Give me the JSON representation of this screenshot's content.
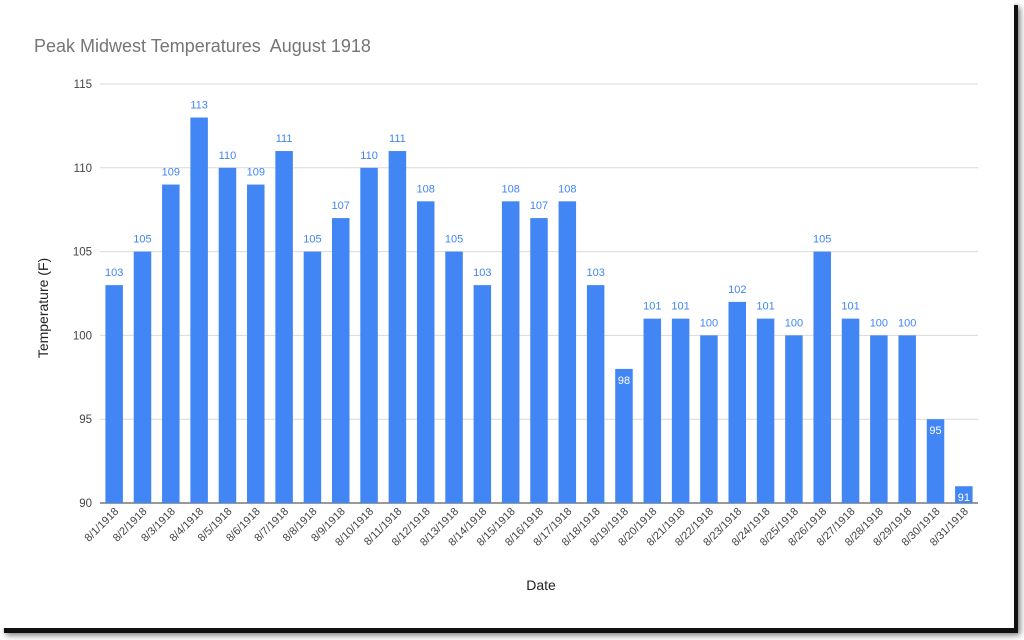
{
  "chart_data": {
    "type": "bar",
    "title": "Peak Midwest Temperatures  August 1918",
    "xlabel": "Date",
    "ylabel": "Temperature (F)",
    "ylim": [
      90,
      115
    ],
    "yticks": [
      90,
      95,
      100,
      105,
      110,
      115
    ],
    "grid": true,
    "legend": "none",
    "bar_color": "#4285f4",
    "label_color_outside": "#4285f4",
    "label_color_inside": "#ffffff",
    "categories": [
      "8/1/1918",
      "8/2/1918",
      "8/3/1918",
      "8/4/1918",
      "8/5/1918",
      "8/6/1918",
      "8/7/1918",
      "8/8/1918",
      "8/9/1918",
      "8/10/1918",
      "8/11/1918",
      "8/12/1918",
      "8/13/1918",
      "8/14/1918",
      "8/15/1918",
      "8/16/1918",
      "8/17/1918",
      "8/18/1918",
      "8/19/1918",
      "8/20/1918",
      "8/21/1918",
      "8/22/1918",
      "8/23/1918",
      "8/24/1918",
      "8/25/1918",
      "8/26/1918",
      "8/27/1918",
      "8/28/1918",
      "8/29/1918",
      "8/30/1918",
      "8/31/1918"
    ],
    "values": [
      103,
      105,
      109,
      113,
      110,
      109,
      111,
      105,
      107,
      110,
      111,
      108,
      105,
      103,
      108,
      107,
      108,
      103,
      98,
      101,
      101,
      100,
      102,
      101,
      100,
      105,
      101,
      100,
      100,
      95,
      91
    ],
    "labels_inside_bar": [
      false,
      false,
      false,
      false,
      false,
      false,
      false,
      false,
      false,
      false,
      false,
      false,
      false,
      false,
      false,
      false,
      false,
      false,
      true,
      false,
      false,
      false,
      false,
      false,
      false,
      false,
      false,
      false,
      false,
      true,
      true
    ]
  }
}
